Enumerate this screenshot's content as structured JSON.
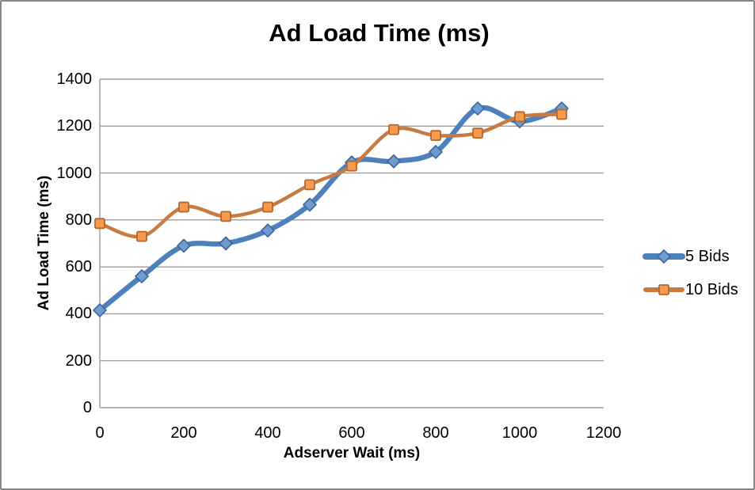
{
  "window": {
    "background_color": "#ffffff",
    "border_color": "#878787"
  },
  "chart_data": {
    "type": "line",
    "title": "Ad Load Time (ms)",
    "xlabel": "Adserver Wait (ms)",
    "ylabel": "Ad Load Time (ms)",
    "xlim": [
      0,
      1200
    ],
    "ylim": [
      0,
      1400
    ],
    "xticks": [
      0,
      200,
      400,
      600,
      800,
      1000,
      1200
    ],
    "yticks": [
      0,
      200,
      400,
      600,
      800,
      1000,
      1200,
      1400
    ],
    "grid": "horizontal",
    "grid_color": "#9d9d9d",
    "legend_position": "right",
    "smoothed_lines": true,
    "x": [
      0,
      100,
      200,
      300,
      400,
      500,
      600,
      700,
      800,
      900,
      1000,
      1100
    ],
    "series": [
      {
        "name": "5 Bids",
        "marker": "diamond",
        "line_color": "#4e81bb",
        "line_width": 6.5,
        "marker_fill": "#6f9bd1",
        "marker_stroke": "#3d6799",
        "values": [
          415,
          560,
          690,
          700,
          755,
          865,
          1045,
          1050,
          1090,
          1275,
          1220,
          1275
        ]
      },
      {
        "name": "10 Bids",
        "marker": "square",
        "line_color": "#c57b41",
        "line_width": 4.5,
        "marker_fill": "#f69a4e",
        "marker_stroke": "#b4672f",
        "values": [
          785,
          730,
          855,
          815,
          855,
          950,
          1030,
          1185,
          1160,
          1170,
          1240,
          1250
        ]
      }
    ]
  }
}
